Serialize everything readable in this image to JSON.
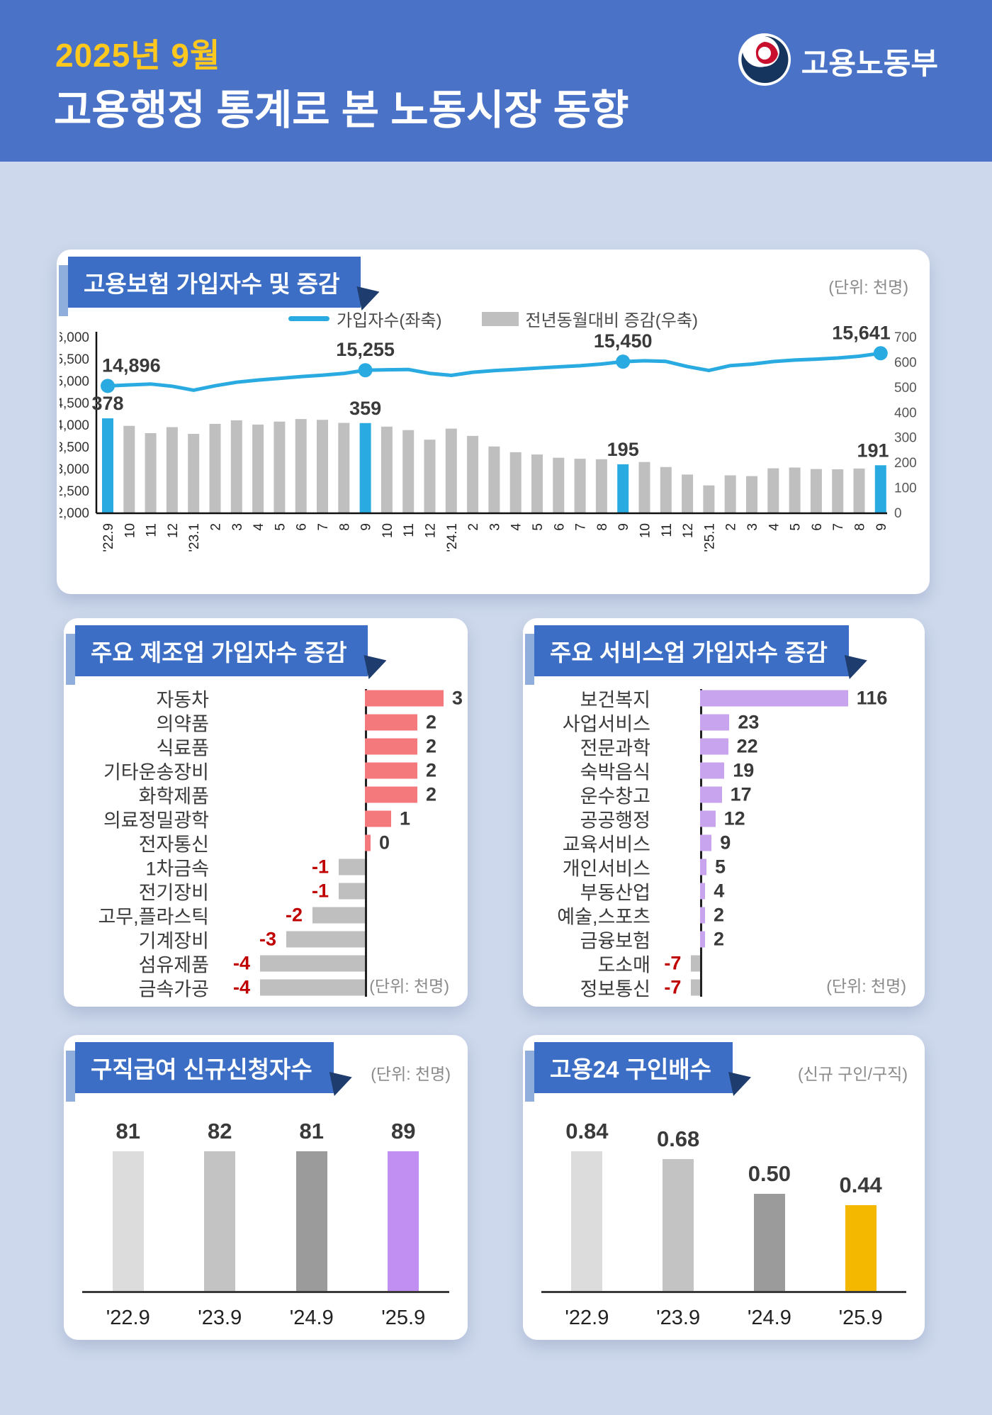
{
  "header": {
    "period": "2025년 9월",
    "title": "고용행정 통계로 본 노동시장 동향",
    "agency": "고용노동부"
  },
  "colors": {
    "header_bg": "#4A73C8",
    "period_yellow": "#FFC81E",
    "body_bg": "#CDD8EC",
    "badge_blue": "#3D6EC5",
    "badge_accent": "#8FAEDC",
    "badge_fold": "#1E3C6E",
    "cyan": "#29ABE2",
    "gray_bar": "#BFBFBF",
    "salmon": "#F4797D",
    "purple": "#C8A4EE",
    "claims_purple": "#C18FF2",
    "gold": "#F5B800",
    "negative_red": "#C00000"
  },
  "cards": {
    "insurance": {
      "title": "고용보험 가입자수 및 증감",
      "unit": "(단위: 천명)",
      "legend": [
        {
          "type": "line",
          "label": "가입자수(좌축)"
        },
        {
          "type": "bar",
          "label": "전년동월대비 증감(우축)"
        }
      ]
    },
    "manufacturing": {
      "title": "주요 제조업 가입자수 증감",
      "unit": "(단위: 천명)"
    },
    "services": {
      "title": "주요 서비스업 가입자수 증감",
      "unit": "(단위: 천명)"
    },
    "claims": {
      "title": "구직급여 신규신청자수",
      "unit": "(단위: 천명)"
    },
    "openings": {
      "title": "고용24 구인배수",
      "unit": "(신규 구인/구직)"
    }
  },
  "chart_data": [
    {
      "id": "insurance_combo",
      "type": "line+bar",
      "title": "고용보험 가입자수 및 증감",
      "unit": "천명",
      "x": [
        "'22.9",
        "10",
        "11",
        "12",
        "'23.1",
        "2",
        "3",
        "4",
        "5",
        "6",
        "7",
        "8",
        "9",
        "10",
        "11",
        "12",
        "'24.1",
        "2",
        "3",
        "4",
        "5",
        "6",
        "7",
        "8",
        "9",
        "10",
        "11",
        "12",
        "'25.1",
        "2",
        "3",
        "4",
        "5",
        "6",
        "7",
        "8",
        "9"
      ],
      "left_axis": {
        "min": 12000,
        "max": 16000,
        "step": 500
      },
      "right_axis": {
        "min": 0,
        "max": 700,
        "step": 100
      },
      "series": [
        {
          "name": "가입자수(좌축)",
          "type": "line",
          "axis": "left",
          "color": "#29ABE2",
          "values": [
            14896,
            14920,
            14940,
            14890,
            14800,
            14900,
            14980,
            15030,
            15070,
            15110,
            15140,
            15180,
            15255,
            15265,
            15271,
            15183,
            15137,
            15208,
            15246,
            15273,
            15304,
            15331,
            15357,
            15395,
            15450,
            15469,
            15455,
            15337,
            15248,
            15359,
            15394,
            15452,
            15486,
            15507,
            15532,
            15573,
            15641
          ]
        },
        {
          "name": "전년동월대비 증감(우축)",
          "type": "bar",
          "axis": "right",
          "color": "#BFBFBF",
          "highlight_color": "#29ABE2",
          "highlight_indices": [
            0,
            12,
            24,
            36
          ],
          "values": [
            378,
            348,
            319,
            343,
            316,
            356,
            370,
            353,
            365,
            375,
            372,
            360,
            359,
            345,
            331,
            293,
            337,
            308,
            266,
            243,
            234,
            221,
            217,
            215,
            195,
            204,
            184,
            154,
            111,
            151,
            148,
            179,
            182,
            176,
            175,
            178,
            191
          ]
        }
      ],
      "labeled_points": [
        {
          "index": 0,
          "line": "14,896",
          "bar": "378"
        },
        {
          "index": 12,
          "line": "15,255",
          "bar": "359"
        },
        {
          "index": 24,
          "line": "15,450",
          "bar": "195"
        },
        {
          "index": 36,
          "line": "15,641",
          "bar": "191"
        }
      ]
    },
    {
      "id": "manufacturing",
      "type": "bar",
      "orientation": "horizontal",
      "title": "주요 제조업 가입자수 증감",
      "unit": "천명",
      "categories": [
        "자동차",
        "의약품",
        "식료품",
        "기타운송장비",
        "화학제품",
        "의료정밀광학",
        "전자통신",
        "1차금속",
        "전기장비",
        "고무,플라스틱",
        "기계장비",
        "섬유제품",
        "금속가공"
      ],
      "values": [
        3,
        2,
        2,
        2,
        2,
        1,
        0,
        -1,
        -1,
        -2,
        -3,
        -4,
        -4
      ],
      "positive_color": "#F4797D",
      "negative_color": "#BFBFBF"
    },
    {
      "id": "services",
      "type": "bar",
      "orientation": "horizontal",
      "title": "주요 서비스업 가입자수 증감",
      "unit": "천명",
      "categories": [
        "보건복지",
        "사업서비스",
        "전문과학",
        "숙박음식",
        "운수창고",
        "공공행정",
        "교육서비스",
        "개인서비스",
        "부동산업",
        "예술,스포츠",
        "금융보험",
        "도소매",
        "정보통신"
      ],
      "values": [
        116,
        23,
        22,
        19,
        17,
        12,
        9,
        5,
        4,
        2,
        2,
        -7,
        -7
      ],
      "positive_color": "#C8A4EE",
      "negative_color": "#BFBFBF"
    },
    {
      "id": "claims",
      "type": "bar",
      "title": "구직급여 신규신청자수",
      "unit": "천명",
      "categories": [
        "'22.9",
        "'23.9",
        "'24.9",
        "'25.9"
      ],
      "values": [
        81,
        82,
        81,
        89
      ],
      "value_labels": [
        "81",
        "82",
        "81",
        "89"
      ],
      "colors": [
        "#DCDCDC",
        "#C3C3C3",
        "#9B9B9B",
        "#C18FF2"
      ]
    },
    {
      "id": "openings",
      "type": "bar",
      "title": "고용24 구인배수",
      "unit": "신규 구인/구직",
      "categories": [
        "'22.9",
        "'23.9",
        "'24.9",
        "'25.9"
      ],
      "values": [
        0.84,
        0.68,
        0.5,
        0.44
      ],
      "value_labels": [
        "0.84",
        "0.68",
        "0.50",
        "0.44"
      ],
      "colors": [
        "#DCDCDC",
        "#C3C3C3",
        "#9B9B9B",
        "#F5B800"
      ]
    }
  ]
}
